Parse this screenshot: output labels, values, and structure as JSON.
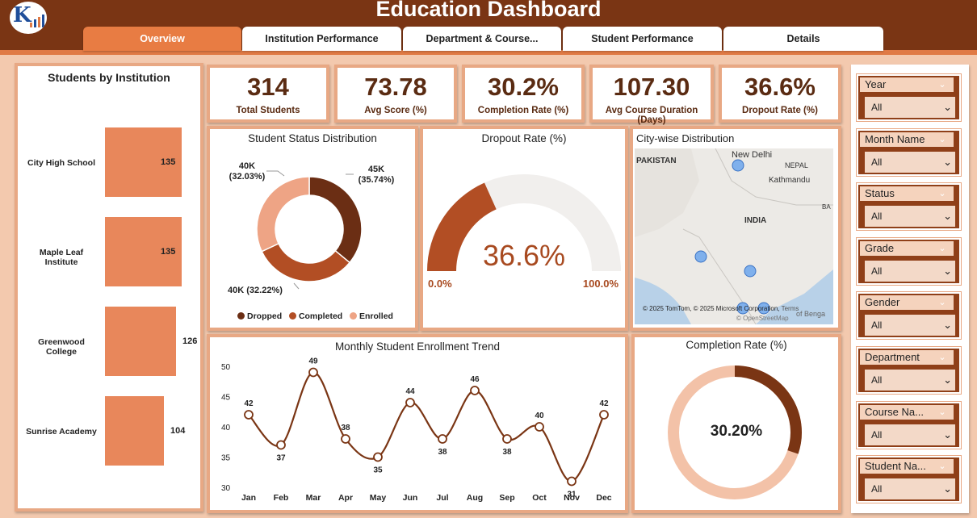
{
  "header": {
    "title": "Education Dashboard"
  },
  "tabs": [
    {
      "label": "Overview",
      "active": true
    },
    {
      "label": "Institution Performance",
      "active": false
    },
    {
      "label": "Department & Course...",
      "active": false
    },
    {
      "label": "Student Performance",
      "active": false
    },
    {
      "label": "Details",
      "active": false
    }
  ],
  "kpis": [
    {
      "value": "314",
      "label": "Total Students"
    },
    {
      "value": "73.78",
      "label": "Avg Score (%)"
    },
    {
      "value": "30.2%",
      "label": "Completion Rate (%)"
    },
    {
      "value": "107.30",
      "label": "Avg Course Duration (Days)"
    },
    {
      "value": "36.6%",
      "label": "Dropout Rate (%)"
    }
  ],
  "institution_chart": {
    "title": "Students by Institution",
    "items": [
      {
        "name": "City High School",
        "value": 135
      },
      {
        "name": "Maple Leaf Institute",
        "value": 135
      },
      {
        "name": "Greenwood College",
        "value": 126
      },
      {
        "name": "Sunrise Academy",
        "value": 104
      }
    ]
  },
  "status_chart": {
    "title": "Student Status Distribution",
    "slices": [
      {
        "name": "Dropped",
        "value": 45,
        "label": "45K",
        "pct": "(35.74%)",
        "color": "#6b2e14"
      },
      {
        "name": "Completed",
        "value": 40,
        "label": "40K",
        "pct": "(32.22%)",
        "color": "#b24e24"
      },
      {
        "name": "Enrolled",
        "value": 40,
        "label": "40K",
        "pct": "(32.03%)",
        "color": "#eea485"
      }
    ]
  },
  "dropout_gauge": {
    "title": "Dropout Rate (%)",
    "value": 36.6,
    "display": "36.6%",
    "min_label": "0.0%",
    "max_label": "100.0%",
    "color": "#b24e24"
  },
  "map": {
    "title": "City-wise Distribution",
    "labels": {
      "pakistan": "PAKISTAN",
      "new_delhi": "New Delhi",
      "nepal": "NEPAL",
      "kathmandu": "Kathmandu",
      "india": "INDIA",
      "ba": "BA",
      "bay": "of Benga"
    },
    "copyright": "© 2025 TomTom, © 2025 Microsoft Corporation,",
    "terms": "Terms",
    "osm": "© OpenStreetMap"
  },
  "trend_chart": {
    "title": "Monthly Student Enrollment Trend",
    "color": "#7a3514"
  },
  "completion_donut": {
    "title": "Completion Rate (%)",
    "value": 30.2,
    "display": "30.20%",
    "color": "#7a3514",
    "track": "#f3c2a8"
  },
  "slicers": [
    {
      "label": "Year",
      "value": "All"
    },
    {
      "label": "Month Name",
      "value": "All"
    },
    {
      "label": "Status",
      "value": "All"
    },
    {
      "label": "Grade",
      "value": "All"
    },
    {
      "label": "Gender",
      "value": "All"
    },
    {
      "label": "Department",
      "value": "All"
    },
    {
      "label": "Course Na...",
      "value": "All"
    },
    {
      "label": "Student Na...",
      "value": "All"
    }
  ],
  "chart_data": [
    {
      "type": "bar",
      "title": "Students by Institution",
      "categories": [
        "City High School",
        "Maple Leaf Institute",
        "Greenwood College",
        "Sunrise Academy"
      ],
      "values": [
        135,
        135,
        126,
        104
      ]
    },
    {
      "type": "pie",
      "title": "Student Status Distribution",
      "categories": [
        "Dropped",
        "Completed",
        "Enrolled"
      ],
      "values": [
        35.74,
        32.22,
        32.03
      ],
      "labels": [
        "45K",
        "40K",
        "40K"
      ],
      "legend": "bottom"
    },
    {
      "type": "line",
      "title": "Monthly Student Enrollment Trend",
      "categories": [
        "Jan",
        "Feb",
        "Mar",
        "Apr",
        "May",
        "Jun",
        "Jul",
        "Aug",
        "Sep",
        "Oct",
        "Nov",
        "Dec"
      ],
      "values": [
        42,
        37,
        49,
        38,
        35,
        44,
        38,
        46,
        38,
        40,
        31,
        42
      ],
      "yticks": [
        30,
        35,
        40,
        45,
        50
      ],
      "ylim": [
        30,
        50
      ]
    }
  ]
}
